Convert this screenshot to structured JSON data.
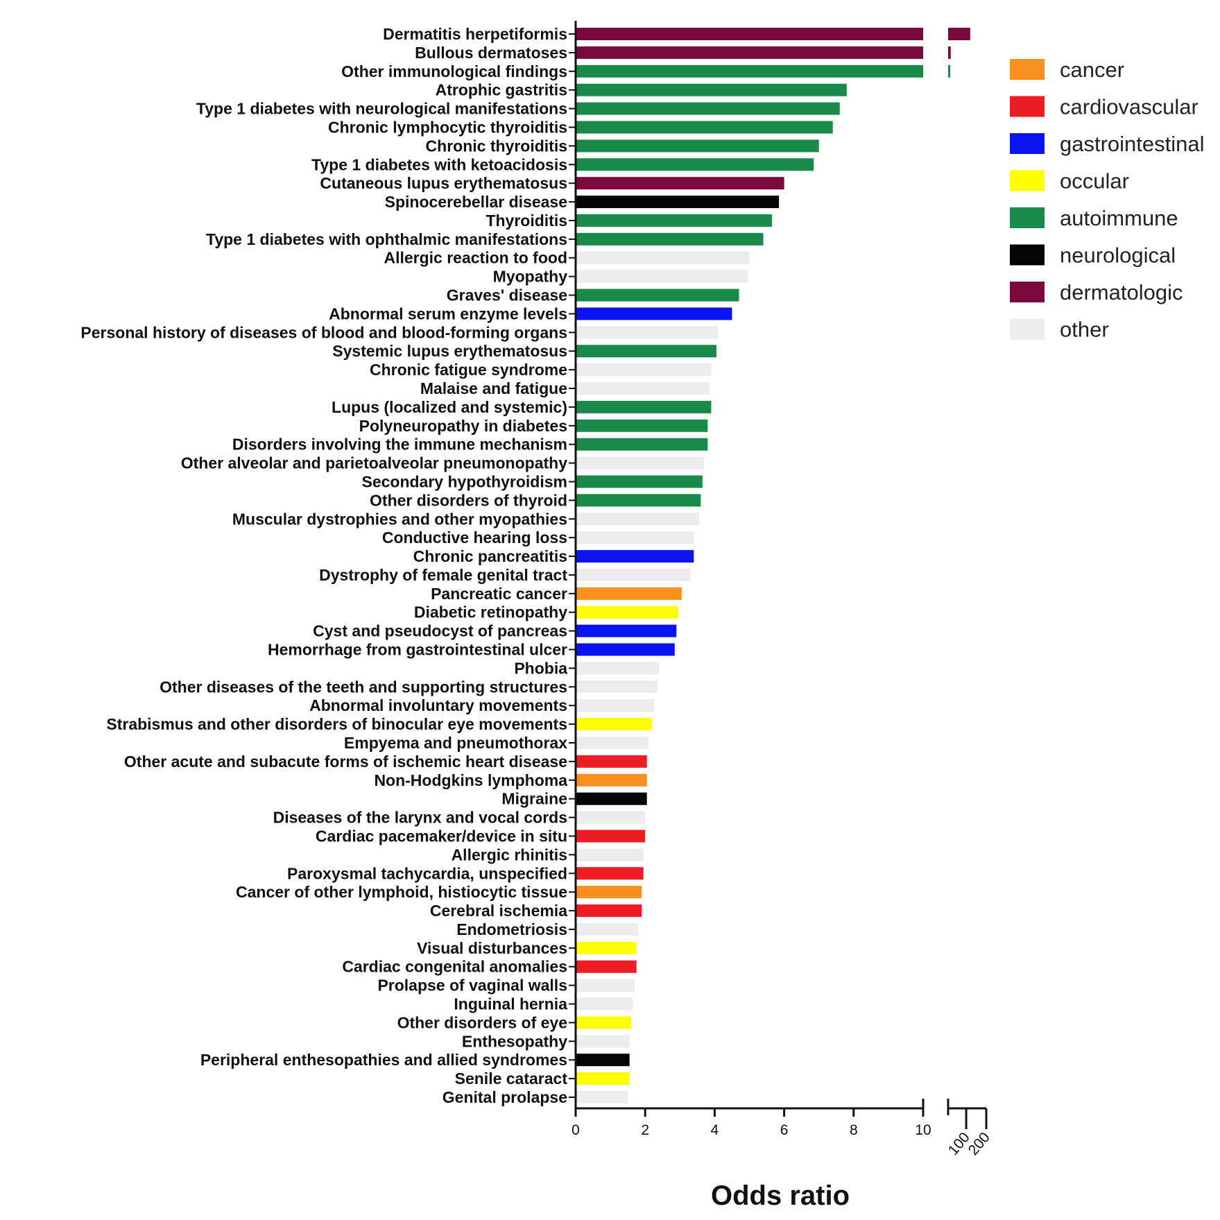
{
  "chart_data": {
    "type": "bar",
    "orientation": "horizontal",
    "xlabel": "Odds ratio",
    "ylabel": "",
    "title": "",
    "axis_segments": [
      {
        "range": [
          0,
          10
        ],
        "ticks": [
          0,
          2,
          4,
          6,
          8,
          10
        ]
      },
      {
        "range": [
          10,
          200
        ],
        "ticks": [
          100,
          200
        ]
      }
    ],
    "grid": false,
    "legend_position": "top-right",
    "category_colors": {
      "cancer": "#f7901e",
      "cardiovascular": "#ee1c24",
      "gastrointestinal": "#0a14f0",
      "occular": "#ffff00",
      "autoimmune": "#1a8a4a",
      "neurological": "#050505",
      "dermatologic": "#7a0a3c",
      "other": "#ececec"
    },
    "legend": [
      "cancer",
      "cardiovascular",
      "gastrointestinal",
      "occular",
      "autoimmune",
      "neurological",
      "dermatologic",
      "other"
    ],
    "items": [
      {
        "label": "Dermatitis herpetiformis",
        "value": 120,
        "group": "dermatologic"
      },
      {
        "label": "Bullous dermatoses",
        "value": 23,
        "group": "dermatologic"
      },
      {
        "label": "Other immunological findings",
        "value": 11,
        "group": "autoimmune"
      },
      {
        "label": "Atrophic gastritis",
        "value": 7.8,
        "group": "autoimmune"
      },
      {
        "label": "Type 1 diabetes with neurological manifestations",
        "value": 7.6,
        "group": "autoimmune"
      },
      {
        "label": "Chronic lymphocytic thyroiditis",
        "value": 7.4,
        "group": "autoimmune"
      },
      {
        "label": "Chronic thyroiditis",
        "value": 7.0,
        "group": "autoimmune"
      },
      {
        "label": "Type 1 diabetes with ketoacidosis",
        "value": 6.85,
        "group": "autoimmune"
      },
      {
        "label": "Cutaneous lupus erythematosus",
        "value": 6.0,
        "group": "dermatologic"
      },
      {
        "label": "Spinocerebellar disease",
        "value": 5.85,
        "group": "neurological"
      },
      {
        "label": "Thyroiditis",
        "value": 5.65,
        "group": "autoimmune"
      },
      {
        "label": "Type 1 diabetes with ophthalmic manifestations",
        "value": 5.4,
        "group": "autoimmune"
      },
      {
        "label": "Allergic reaction to food",
        "value": 5.0,
        "group": "other"
      },
      {
        "label": "Myopathy",
        "value": 4.95,
        "group": "other"
      },
      {
        "label": "Graves' disease",
        "value": 4.7,
        "group": "autoimmune"
      },
      {
        "label": "Abnormal serum enzyme levels",
        "value": 4.5,
        "group": "gastrointestinal"
      },
      {
        "label": "Personal history of diseases of blood and blood-forming organs",
        "value": 4.1,
        "group": "other"
      },
      {
        "label": "Systemic lupus erythematosus",
        "value": 4.05,
        "group": "autoimmune"
      },
      {
        "label": "Chronic fatigue syndrome",
        "value": 3.9,
        "group": "other"
      },
      {
        "label": "Malaise and fatigue",
        "value": 3.85,
        "group": "other"
      },
      {
        "label": "Lupus (localized and systemic)",
        "value": 3.9,
        "group": "autoimmune"
      },
      {
        "label": "Polyneuropathy in diabetes",
        "value": 3.8,
        "group": "autoimmune"
      },
      {
        "label": "Disorders involving the immune mechanism",
        "value": 3.8,
        "group": "autoimmune"
      },
      {
        "label": "Other alveolar and parietoalveolar pneumonopathy",
        "value": 3.7,
        "group": "other"
      },
      {
        "label": "Secondary hypothyroidism",
        "value": 3.65,
        "group": "autoimmune"
      },
      {
        "label": "Other disorders of thyroid",
        "value": 3.6,
        "group": "autoimmune"
      },
      {
        "label": "Muscular dystrophies and other myopathies",
        "value": 3.55,
        "group": "other"
      },
      {
        "label": "Conductive hearing loss",
        "value": 3.4,
        "group": "other"
      },
      {
        "label": "Chronic pancreatitis",
        "value": 3.4,
        "group": "gastrointestinal"
      },
      {
        "label": "Dystrophy of female genital tract",
        "value": 3.3,
        "group": "other"
      },
      {
        "label": "Pancreatic cancer",
        "value": 3.05,
        "group": "cancer"
      },
      {
        "label": "Diabetic retinopathy",
        "value": 2.95,
        "group": "occular"
      },
      {
        "label": "Cyst and pseudocyst of pancreas",
        "value": 2.9,
        "group": "gastrointestinal"
      },
      {
        "label": "Hemorrhage from gastrointestinal ulcer",
        "value": 2.85,
        "group": "gastrointestinal"
      },
      {
        "label": "Phobia",
        "value": 2.4,
        "group": "other"
      },
      {
        "label": "Other diseases of the teeth and supporting structures",
        "value": 2.35,
        "group": "other"
      },
      {
        "label": "Abnormal involuntary movements",
        "value": 2.25,
        "group": "other"
      },
      {
        "label": "Strabismus and other disorders of binocular eye movements",
        "value": 2.2,
        "group": "occular"
      },
      {
        "label": "Empyema and pneumothorax",
        "value": 2.1,
        "group": "other"
      },
      {
        "label": "Other acute and subacute forms of ischemic heart disease",
        "value": 2.05,
        "group": "cardiovascular"
      },
      {
        "label": "Non-Hodgkins lymphoma",
        "value": 2.05,
        "group": "cancer"
      },
      {
        "label": "Migraine",
        "value": 2.05,
        "group": "neurological"
      },
      {
        "label": "Diseases of the larynx and vocal cords",
        "value": 2.0,
        "group": "other"
      },
      {
        "label": "Cardiac pacemaker/device in situ",
        "value": 2.0,
        "group": "cardiovascular"
      },
      {
        "label": "Allergic rhinitis",
        "value": 1.95,
        "group": "other"
      },
      {
        "label": "Paroxysmal tachycardia, unspecified",
        "value": 1.95,
        "group": "cardiovascular"
      },
      {
        "label": "Cancer of other lymphoid, histiocytic tissue",
        "value": 1.9,
        "group": "cancer"
      },
      {
        "label": "Cerebral ischemia",
        "value": 1.9,
        "group": "cardiovascular"
      },
      {
        "label": "Endometriosis",
        "value": 1.8,
        "group": "other"
      },
      {
        "label": "Visual disturbances",
        "value": 1.75,
        "group": "occular"
      },
      {
        "label": "Cardiac congenital anomalies",
        "value": 1.75,
        "group": "cardiovascular"
      },
      {
        "label": "Prolapse of vaginal walls",
        "value": 1.7,
        "group": "other"
      },
      {
        "label": "Inguinal hernia",
        "value": 1.65,
        "group": "other"
      },
      {
        "label": "Other disorders of eye",
        "value": 1.6,
        "group": "occular"
      },
      {
        "label": "Enthesopathy",
        "value": 1.55,
        "group": "other"
      },
      {
        "label": "Peripheral enthesopathies and allied syndromes",
        "value": 1.55,
        "group": "neurological"
      },
      {
        "label": "Senile cataract",
        "value": 1.55,
        "group": "occular"
      },
      {
        "label": "Genital prolapse",
        "value": 1.5,
        "group": "other"
      }
    ]
  }
}
